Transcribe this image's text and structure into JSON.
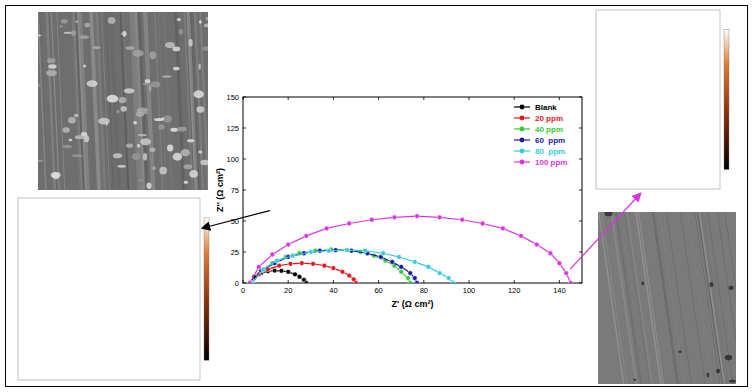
{
  "chart_data": {
    "type": "line",
    "marker": "circle",
    "x_label": "Z' (Ω cm²)",
    "y_label": "Z'' (Ω cm²)",
    "xlim": [
      0,
      150
    ],
    "ylim": [
      0,
      150
    ],
    "xticks": [
      0,
      20,
      40,
      60,
      80,
      100,
      120,
      140
    ],
    "yticks": [
      0,
      25,
      50,
      75,
      100,
      125,
      150
    ],
    "legend": "upper right",
    "series": [
      {
        "name": "Blank",
        "color": "#000000",
        "x": [
          3,
          5,
          8,
          11,
          14,
          17,
          20,
          23,
          25,
          27,
          28
        ],
        "values": [
          0,
          5,
          8,
          9.5,
          10,
          9.8,
          9,
          7,
          5,
          2.5,
          0
        ]
      },
      {
        "name": "20 ppm",
        "color": "#e8141a",
        "x": [
          4,
          7,
          11,
          16,
          21,
          26,
          31,
          36,
          40,
          44,
          47,
          49,
          50
        ],
        "values": [
          0,
          7,
          11,
          14,
          15.5,
          16,
          15.5,
          14,
          12,
          9,
          6,
          3,
          0
        ]
      },
      {
        "name": "40 ppm",
        "color": "#33cc33",
        "x": [
          4,
          8,
          13,
          19,
          25,
          32,
          39,
          46,
          52,
          58,
          63,
          67,
          70,
          73,
          74
        ],
        "values": [
          0,
          10,
          16,
          21,
          24,
          26,
          27,
          26.5,
          25,
          22,
          18,
          14,
          9,
          4,
          0
        ]
      },
      {
        "name": "60  ppm",
        "color": "#1a1aa8",
        "x": [
          4,
          8,
          14,
          20,
          27,
          34,
          41,
          48,
          55,
          61,
          66,
          70,
          74,
          76,
          77
        ],
        "values": [
          0,
          10,
          16,
          21,
          24,
          26,
          26.5,
          26,
          24,
          21,
          17,
          13,
          8,
          4,
          0
        ]
      },
      {
        "name": "80  ppm",
        "color": "#33ccdd",
        "x": [
          4,
          9,
          15,
          22,
          30,
          38,
          46,
          54,
          62,
          69,
          76,
          82,
          87,
          91,
          93
        ],
        "values": [
          0,
          11,
          18,
          22,
          25,
          26,
          26.5,
          26,
          24,
          21,
          17,
          13,
          8,
          4,
          0
        ]
      },
      {
        "name": "100 ppm",
        "color": "#dd33dd",
        "x": [
          3,
          7,
          13,
          20,
          28,
          37,
          47,
          57,
          67,
          77,
          87,
          97,
          106,
          115,
          123,
          130,
          136,
          140,
          143,
          145
        ],
        "values": [
          0,
          13,
          23,
          31,
          38,
          44,
          48,
          51,
          53,
          54,
          53,
          51,
          48,
          44,
          38,
          31,
          24,
          16,
          8,
          0
        ]
      }
    ]
  }
}
